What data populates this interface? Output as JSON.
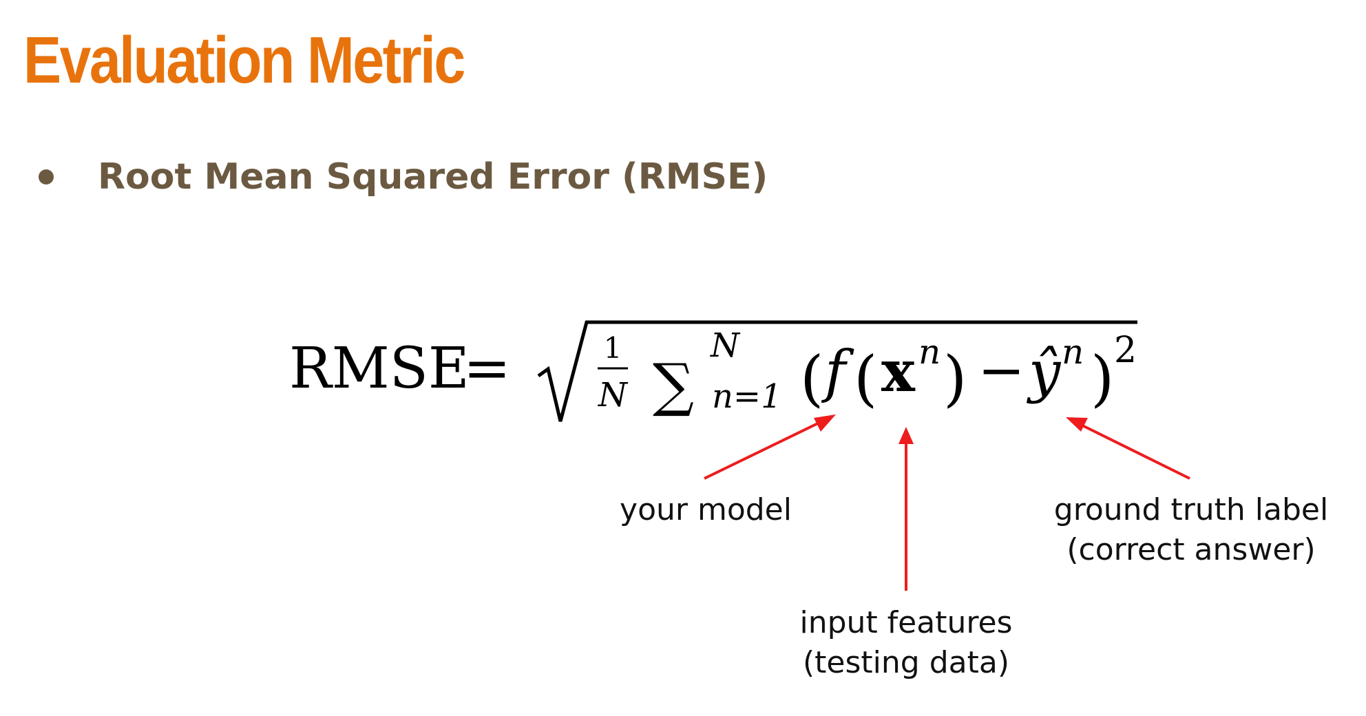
{
  "slide": {
    "title": "Evaluation Metric",
    "bullet": "Root Mean Squared Error (RMSE)"
  },
  "colors": {
    "title": "#e8730c",
    "bullet_text": "#6b5a41",
    "bullet_dot": "#6b5a41",
    "arrow": "#ee1c1c",
    "formula": "#000000"
  },
  "formula": {
    "lhs": "RMSE",
    "equals": "=",
    "frac_num": "1",
    "frac_den": "N",
    "sum": "∑",
    "sum_upper": "N",
    "sum_lower": "n=1",
    "open_paren": "(",
    "f": "f",
    "inner_open": "(",
    "x": "x",
    "x_sup": "n",
    "inner_close": ")",
    "minus": "−",
    "y_hat": "ŷ",
    "y_sup": "n",
    "close_paren": ")",
    "exp": "2"
  },
  "annotations": {
    "model": "your model",
    "features_line1": "input features",
    "features_line2": "(testing data)",
    "truth_line1": "ground truth label",
    "truth_line2": "(correct answer)"
  }
}
